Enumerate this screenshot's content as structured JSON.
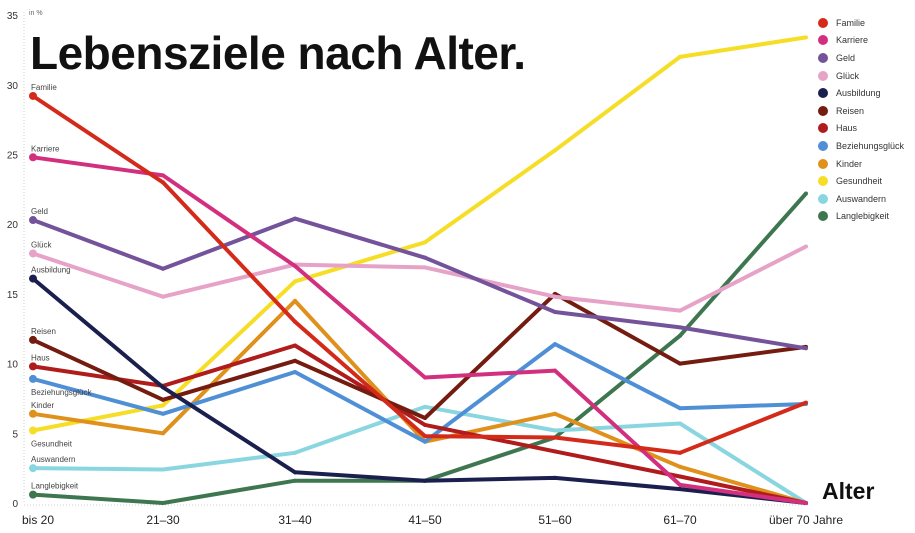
{
  "chart_data": {
    "type": "line",
    "title": "Lebensziele nach Alter.",
    "unit_label": "in %",
    "xlabel": "Alter",
    "ylabel": "",
    "ylim": [
      0,
      35
    ],
    "yticks": [
      "0",
      "5",
      "10",
      "15",
      "20",
      "25",
      "30",
      "35"
    ],
    "grid": false,
    "legend_position": "right",
    "categories": [
      "bis 20",
      "21–30",
      "31–40",
      "41–50",
      "51–60",
      "61–70",
      "über 70 Jahre"
    ],
    "series": [
      {
        "name": "Familie",
        "color": "#d42a1a",
        "values": [
          29.2,
          23.0,
          13.0,
          4.8,
          4.7,
          3.6,
          7.2
        ]
      },
      {
        "name": "Karriere",
        "color": "#d2307f",
        "values": [
          24.8,
          23.5,
          17.0,
          9.0,
          9.5,
          1.3,
          0
        ]
      },
      {
        "name": "Geld",
        "color": "#74539b",
        "values": [
          20.3,
          16.8,
          20.4,
          17.6,
          13.7,
          12.6,
          11.1
        ]
      },
      {
        "name": "Glück",
        "color": "#e6a3c7",
        "values": [
          17.9,
          14.8,
          17.1,
          16.9,
          14.8,
          13.8,
          18.4
        ]
      },
      {
        "name": "Ausbildung",
        "color": "#1a1f4e",
        "values": [
          16.1,
          8.3,
          2.2,
          1.6,
          1.8,
          1.0,
          0
        ]
      },
      {
        "name": "Reisen",
        "color": "#741c10",
        "values": [
          11.7,
          7.4,
          10.2,
          6.1,
          15.0,
          10.0,
          11.2
        ]
      },
      {
        "name": "Haus",
        "color": "#b01c1c",
        "values": [
          9.8,
          8.4,
          11.3,
          5.6,
          3.7,
          1.9,
          0
        ]
      },
      {
        "name": "Beziehungsglück",
        "color": "#4f8fd6",
        "values": [
          8.9,
          6.4,
          9.4,
          4.4,
          11.4,
          6.8,
          7.1
        ]
      },
      {
        "name": "Kinder",
        "color": "#e0911c",
        "values": [
          6.4,
          5.0,
          14.5,
          4.4,
          6.4,
          2.6,
          0
        ]
      },
      {
        "name": "Gesundheit",
        "color": "#f6dd26",
        "values": [
          5.2,
          7.0,
          15.9,
          18.7,
          25.3,
          32.0,
          33.4
        ]
      },
      {
        "name": "Auswandern",
        "color": "#8ad6e0",
        "values": [
          2.5,
          2.4,
          3.6,
          6.9,
          5.2,
          5.7,
          0
        ]
      },
      {
        "name": "Langlebigkeit",
        "color": "#3e7650",
        "values": [
          0.6,
          0,
          1.6,
          1.6,
          4.7,
          12.0,
          22.2
        ]
      }
    ]
  }
}
